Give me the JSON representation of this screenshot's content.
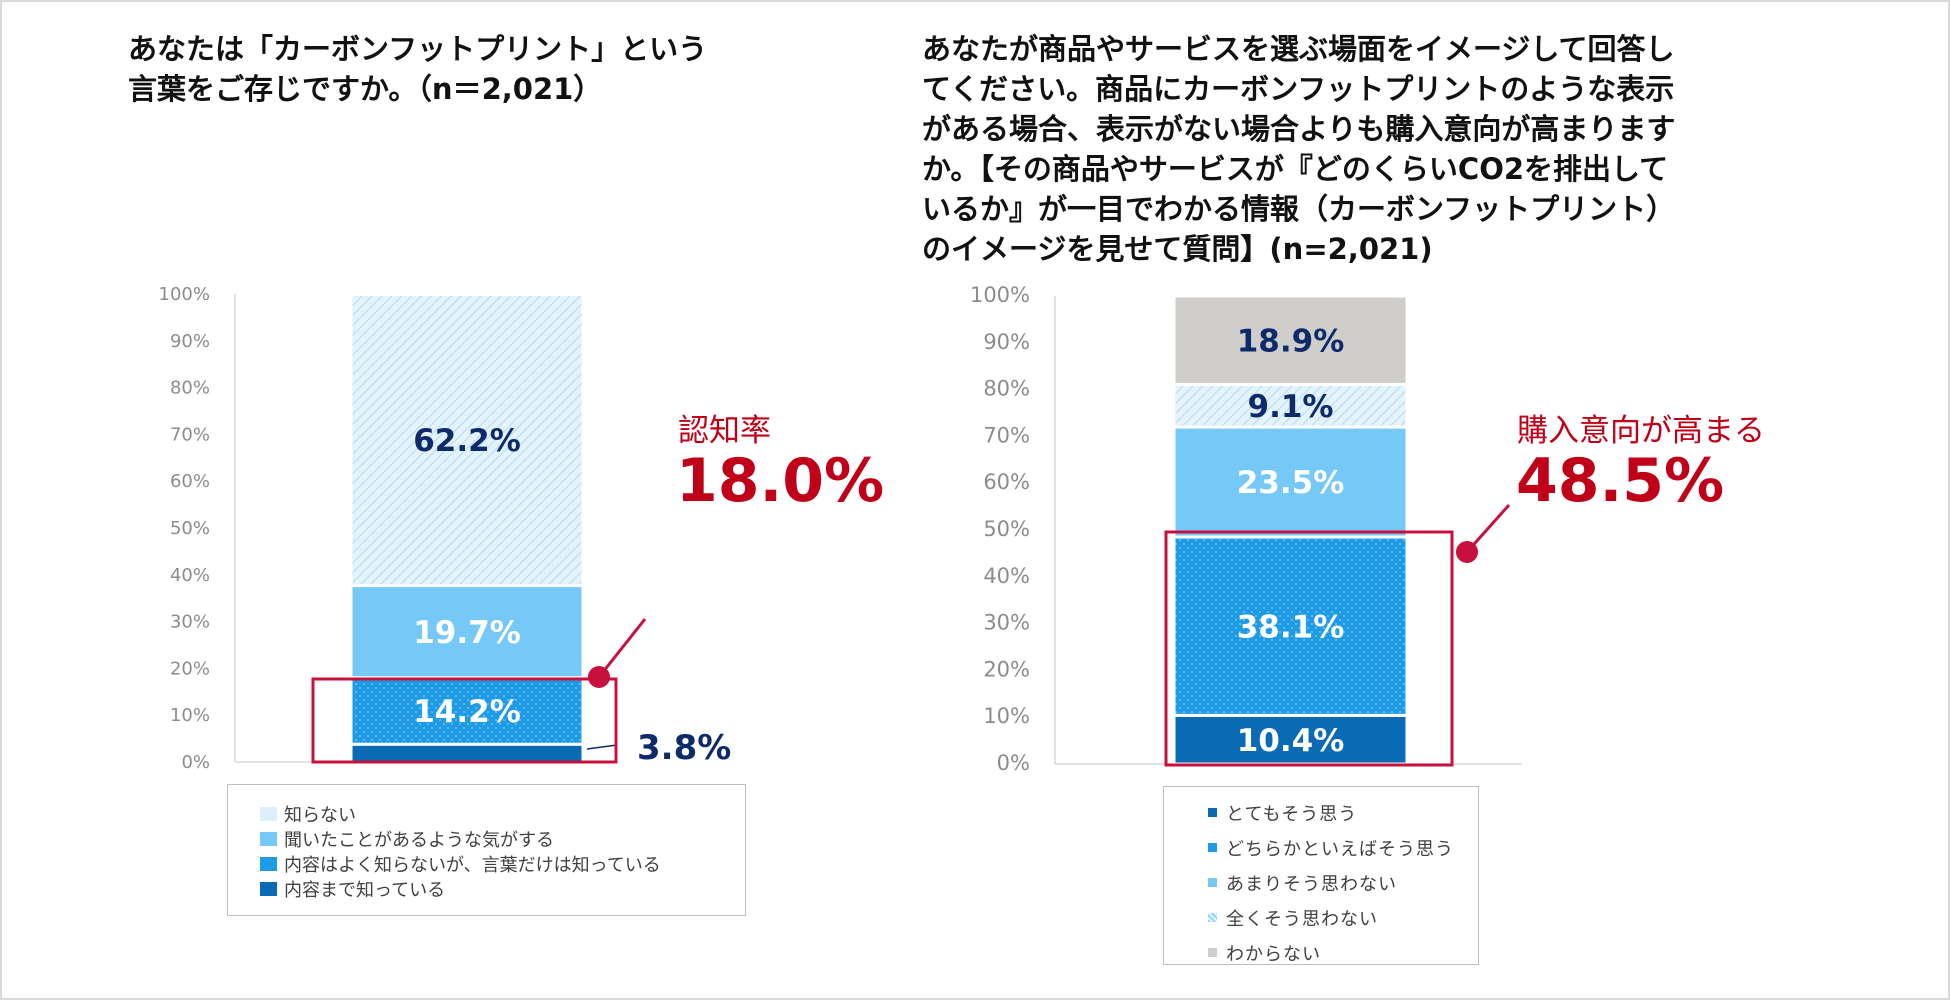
{
  "chart_data": [
    {
      "type": "bar",
      "stacked": true,
      "title": "あなたは「カーボンフットプリント」という\n言葉をご存じですか。（n＝2,021）",
      "ylim": [
        0,
        100
      ],
      "yticks": [
        "0%",
        "10%",
        "20%",
        "30%",
        "40%",
        "50%",
        "60%",
        "70%",
        "80%",
        "90%",
        "100%"
      ],
      "series": [
        {
          "name": "内容まで知っている",
          "value": 3.8,
          "label": "3.8%",
          "color": "#0a6ab3",
          "pattern": "solid",
          "label_color": "#0d2a6b"
        },
        {
          "name": "内容はよく知らないが、言葉だけは知っている",
          "value": 14.2,
          "label": "14.2%",
          "color": "#1e9be6",
          "pattern": "dots",
          "label_color": "#ffffff"
        },
        {
          "name": "聞いたことがあるような気がする",
          "value": 19.7,
          "label": "19.7%",
          "color": "#76c9f6",
          "pattern": "solid",
          "label_color": "#ffffff"
        },
        {
          "name": "知らない",
          "value": 62.2,
          "label": "62.2%",
          "color": "#dceffb",
          "pattern": "hatch",
          "label_color": "#0d2a6b"
        }
      ],
      "legend_order": [
        "知らない",
        "聞いたことがあるような気がする",
        "内容はよく知らないが、言葉だけは知っている",
        "内容まで知っている"
      ],
      "callout": {
        "label": "認知率",
        "value": "18.0%"
      }
    },
    {
      "type": "bar",
      "stacked": true,
      "title": "あなたが商品やサービスを選ぶ場面をイメージして回答し\nてください。商品にカーボンフットプリントのような表示\nがある場合、表示がない場合よりも購入意向が高まります\nか。【その商品やサービスが『どのくらいCO2を排出して\nいるか』が一目でわかる情報（カーボンフットプリント）\nのイメージを見せて質問】(n=2,021)",
      "ylim": [
        0,
        100
      ],
      "yticks": [
        "0%",
        "10%",
        "20%",
        "30%",
        "40%",
        "50%",
        "60%",
        "70%",
        "80%",
        "90%",
        "100%"
      ],
      "series": [
        {
          "name": "とてもそう思う",
          "value": 10.4,
          "label": "10.4%",
          "color": "#0a6ab3",
          "pattern": "solid",
          "label_color": "#ffffff"
        },
        {
          "name": "どちらかといえばそう思う",
          "value": 38.1,
          "label": "38.1%",
          "color": "#1e9be6",
          "pattern": "dots",
          "label_color": "#ffffff"
        },
        {
          "name": "あまりそう思わない",
          "value": 23.5,
          "label": "23.5%",
          "color": "#76c9f6",
          "pattern": "solid",
          "label_color": "#ffffff"
        },
        {
          "name": "全くそう思わない",
          "value": 9.1,
          "label": "9.1%",
          "color": "#dceffb",
          "pattern": "hatch",
          "label_color": "#0d2a6b"
        },
        {
          "name": "わからない",
          "value": 18.9,
          "label": "18.9%",
          "color": "#d0cecb",
          "pattern": "solid",
          "label_color": "#0d2a6b"
        }
      ],
      "legend_order": [
        "とてもそう思う",
        "どちらかといえばそう思う",
        "あまりそう思わない",
        "全くそう思わない",
        "わからない"
      ],
      "callout": {
        "label": "購入意向が高まる",
        "value": "48.5%"
      }
    }
  ],
  "colors": {
    "accent": "#c00018",
    "callout_box": "#c8103e",
    "axis_text": "#8c8c8c"
  }
}
